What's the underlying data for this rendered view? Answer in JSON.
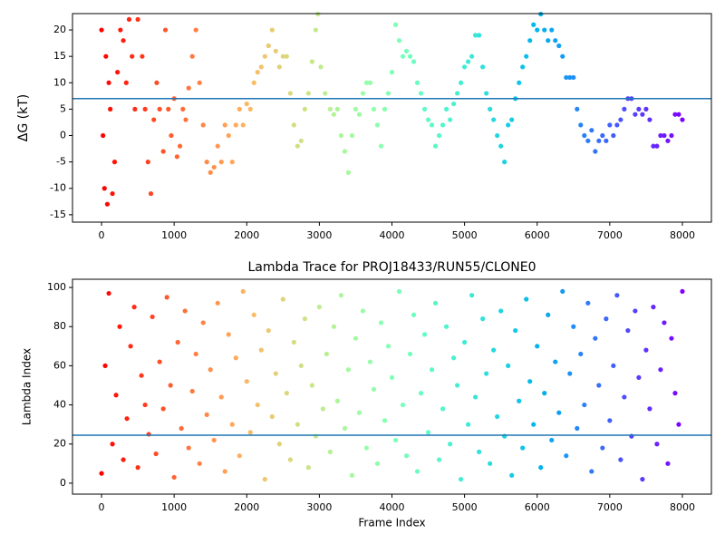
{
  "chart_data": [
    {
      "type": "scatter",
      "ylabel": "ΔG (kT)",
      "colormap": "rainbow_r",
      "color_by": "x",
      "xlim": [
        -400,
        8400
      ],
      "xticks": [
        0,
        1000,
        2000,
        3000,
        4000,
        5000,
        6000,
        7000,
        8000
      ],
      "ylim": [
        -16.4,
        23.1
      ],
      "yticks": [
        -15,
        -10,
        -5,
        0,
        5,
        10,
        15,
        20
      ],
      "hline": 7,
      "hline_color": "#1f77b4",
      "x": [
        0,
        20,
        40,
        60,
        80,
        100,
        120,
        150,
        180,
        220,
        260,
        300,
        340,
        380,
        420,
        460,
        500,
        560,
        600,
        640,
        680,
        720,
        760,
        800,
        850,
        880,
        920,
        960,
        1000,
        1040,
        1080,
        1120,
        1160,
        1200,
        1250,
        1300,
        1350,
        1400,
        1450,
        1500,
        1550,
        1600,
        1650,
        1700,
        1750,
        1800,
        1850,
        1900,
        1950,
        2000,
        2050,
        2100,
        2150,
        2200,
        2250,
        2300,
        2350,
        2400,
        2450,
        2500,
        2550,
        2600,
        2650,
        2700,
        2750,
        2800,
        2850,
        2900,
        2950,
        2980,
        3020,
        3080,
        3150,
        3200,
        3250,
        3300,
        3350,
        3400,
        3450,
        3500,
        3550,
        3600,
        3650,
        3700,
        3750,
        3800,
        3850,
        3900,
        3950,
        4000,
        4050,
        4100,
        4150,
        4200,
        4250,
        4300,
        4350,
        4400,
        4450,
        4500,
        4550,
        4600,
        4650,
        4700,
        4750,
        4800,
        4850,
        4900,
        4950,
        5000,
        5050,
        5100,
        5150,
        5200,
        5250,
        5300,
        5350,
        5400,
        5450,
        5500,
        5550,
        5600,
        5650,
        5700,
        5750,
        5800,
        5850,
        5900,
        5950,
        6000,
        6050,
        6100,
        6150,
        6200,
        6250,
        6300,
        6350,
        6400,
        6450,
        6500,
        6550,
        6600,
        6650,
        6700,
        6750,
        6800,
        6850,
        6900,
        6950,
        7000,
        7050,
        7100,
        7150,
        7200,
        7250,
        7300,
        7350,
        7400,
        7450,
        7500,
        7550,
        7600,
        7650,
        7700,
        7750,
        7800,
        7850,
        7900,
        7950,
        8000
      ],
      "values": [
        20,
        0,
        -10,
        15,
        -13,
        10,
        5,
        -11,
        -5,
        12,
        20,
        18,
        10,
        22,
        15,
        5,
        22,
        15,
        5,
        -5,
        -11,
        3,
        10,
        5,
        -3,
        20,
        5,
        0,
        7,
        -4,
        -2,
        5,
        3,
        9,
        15,
        20,
        10,
        2,
        -5,
        -7,
        -6,
        -2,
        -5,
        2,
        0,
        -5,
        2,
        5,
        2,
        6,
        5,
        10,
        12,
        13,
        15,
        17,
        20,
        16,
        13,
        15,
        15,
        8,
        2,
        -2,
        -1,
        5,
        8,
        14,
        20,
        23,
        13,
        8,
        5,
        4,
        5,
        0,
        -3,
        -7,
        0,
        5,
        4,
        8,
        10,
        10,
        5,
        2,
        -2,
        5,
        8,
        12,
        21,
        18,
        15,
        16,
        15,
        14,
        10,
        8,
        5,
        3,
        2,
        -2,
        0,
        2,
        5,
        3,
        6,
        8,
        10,
        13,
        14,
        15,
        19,
        19,
        13,
        8,
        5,
        3,
        0,
        -2,
        -5,
        2,
        3,
        7,
        10,
        13,
        15,
        18,
        21,
        20,
        23,
        20,
        18,
        20,
        18,
        17,
        15,
        11,
        11,
        11,
        5,
        2,
        0,
        -1,
        1,
        -3,
        -1,
        0,
        -1,
        2,
        0,
        2,
        3,
        5,
        7,
        7,
        4,
        5,
        4,
        5,
        3,
        -2,
        -2,
        0,
        0,
        -1,
        0,
        4,
        4,
        3
      ]
    },
    {
      "type": "scatter",
      "title": "Lambda Trace for PROJ18433/RUN55/CLONE0",
      "xlabel": "Frame Index",
      "ylabel": "Lambda Index",
      "colormap": "rainbow_r",
      "color_by": "x",
      "xlim": [
        -400,
        8400
      ],
      "xticks": [
        0,
        1000,
        2000,
        3000,
        4000,
        5000,
        6000,
        7000,
        8000
      ],
      "ylim": [
        -5.6,
        104.2
      ],
      "yticks": [
        0,
        20,
        40,
        60,
        80,
        100
      ],
      "hline": 24.5,
      "hline_color": "#1f77b4",
      "x": [
        0,
        50,
        100,
        150,
        200,
        250,
        300,
        350,
        400,
        450,
        500,
        550,
        600,
        650,
        700,
        750,
        800,
        850,
        900,
        950,
        1000,
        1050,
        1100,
        1150,
        1200,
        1250,
        1300,
        1350,
        1400,
        1450,
        1500,
        1550,
        1600,
        1650,
        1700,
        1750,
        1800,
        1850,
        1900,
        1950,
        2000,
        2050,
        2100,
        2150,
        2200,
        2250,
        2300,
        2350,
        2400,
        2450,
        2500,
        2550,
        2600,
        2650,
        2700,
        2750,
        2800,
        2850,
        2900,
        2950,
        3000,
        3050,
        3100,
        3150,
        3200,
        3250,
        3300,
        3350,
        3400,
        3450,
        3500,
        3550,
        3600,
        3650,
        3700,
        3750,
        3800,
        3850,
        3900,
        3950,
        4000,
        4050,
        4100,
        4150,
        4200,
        4250,
        4300,
        4350,
        4400,
        4450,
        4500,
        4550,
        4600,
        4650,
        4700,
        4750,
        4800,
        4850,
        4900,
        4950,
        5000,
        5050,
        5100,
        5150,
        5200,
        5250,
        5300,
        5350,
        5400,
        5450,
        5500,
        5550,
        5600,
        5650,
        5700,
        5750,
        5800,
        5850,
        5900,
        5950,
        6000,
        6050,
        6100,
        6150,
        6200,
        6250,
        6300,
        6350,
        6400,
        6450,
        6500,
        6550,
        6600,
        6650,
        6700,
        6750,
        6800,
        6850,
        6900,
        6950,
        7000,
        7050,
        7100,
        7150,
        7200,
        7250,
        7300,
        7350,
        7400,
        7450,
        7500,
        7550,
        7600,
        7650,
        7700,
        7750,
        7800,
        7850,
        7900,
        7950,
        8000
      ],
      "values": [
        5,
        60,
        97,
        20,
        45,
        80,
        12,
        33,
        70,
        90,
        8,
        55,
        40,
        25,
        85,
        15,
        62,
        38,
        95,
        50,
        3,
        72,
        28,
        88,
        18,
        47,
        66,
        10,
        82,
        35,
        58,
        22,
        92,
        44,
        6,
        76,
        30,
        64,
        14,
        98,
        52,
        26,
        86,
        40,
        68,
        2,
        78,
        34,
        56,
        20,
        94,
        46,
        12,
        72,
        30,
        60,
        84,
        8,
        50,
        24,
        90,
        38,
        66,
        16,
        80,
        42,
        96,
        28,
        58,
        4,
        74,
        36,
        88,
        18,
        62,
        48,
        10,
        82,
        32,
        70,
        54,
        22,
        98,
        40,
        14,
        66,
        86,
        6,
        46,
        76,
        26,
        58,
        92,
        12,
        38,
        80,
        20,
        64,
        50,
        2,
        72,
        30,
        96,
        44,
        16,
        84,
        56,
        10,
        68,
        34,
        88,
        24,
        60,
        4,
        78,
        42,
        18,
        94,
        52,
        30,
        70,
        8,
        46,
        86,
        22,
        62,
        36,
        98,
        14,
        56,
        80,
        28,
        66,
        40,
        92,
        6,
        74,
        50,
        18,
        84,
        32,
        60,
        96,
        12,
        44,
        78,
        24,
        88,
        54,
        2,
        68,
        38,
        90,
        20,
        58,
        82,
        10,
        74,
        46,
        30,
        98
      ]
    }
  ]
}
